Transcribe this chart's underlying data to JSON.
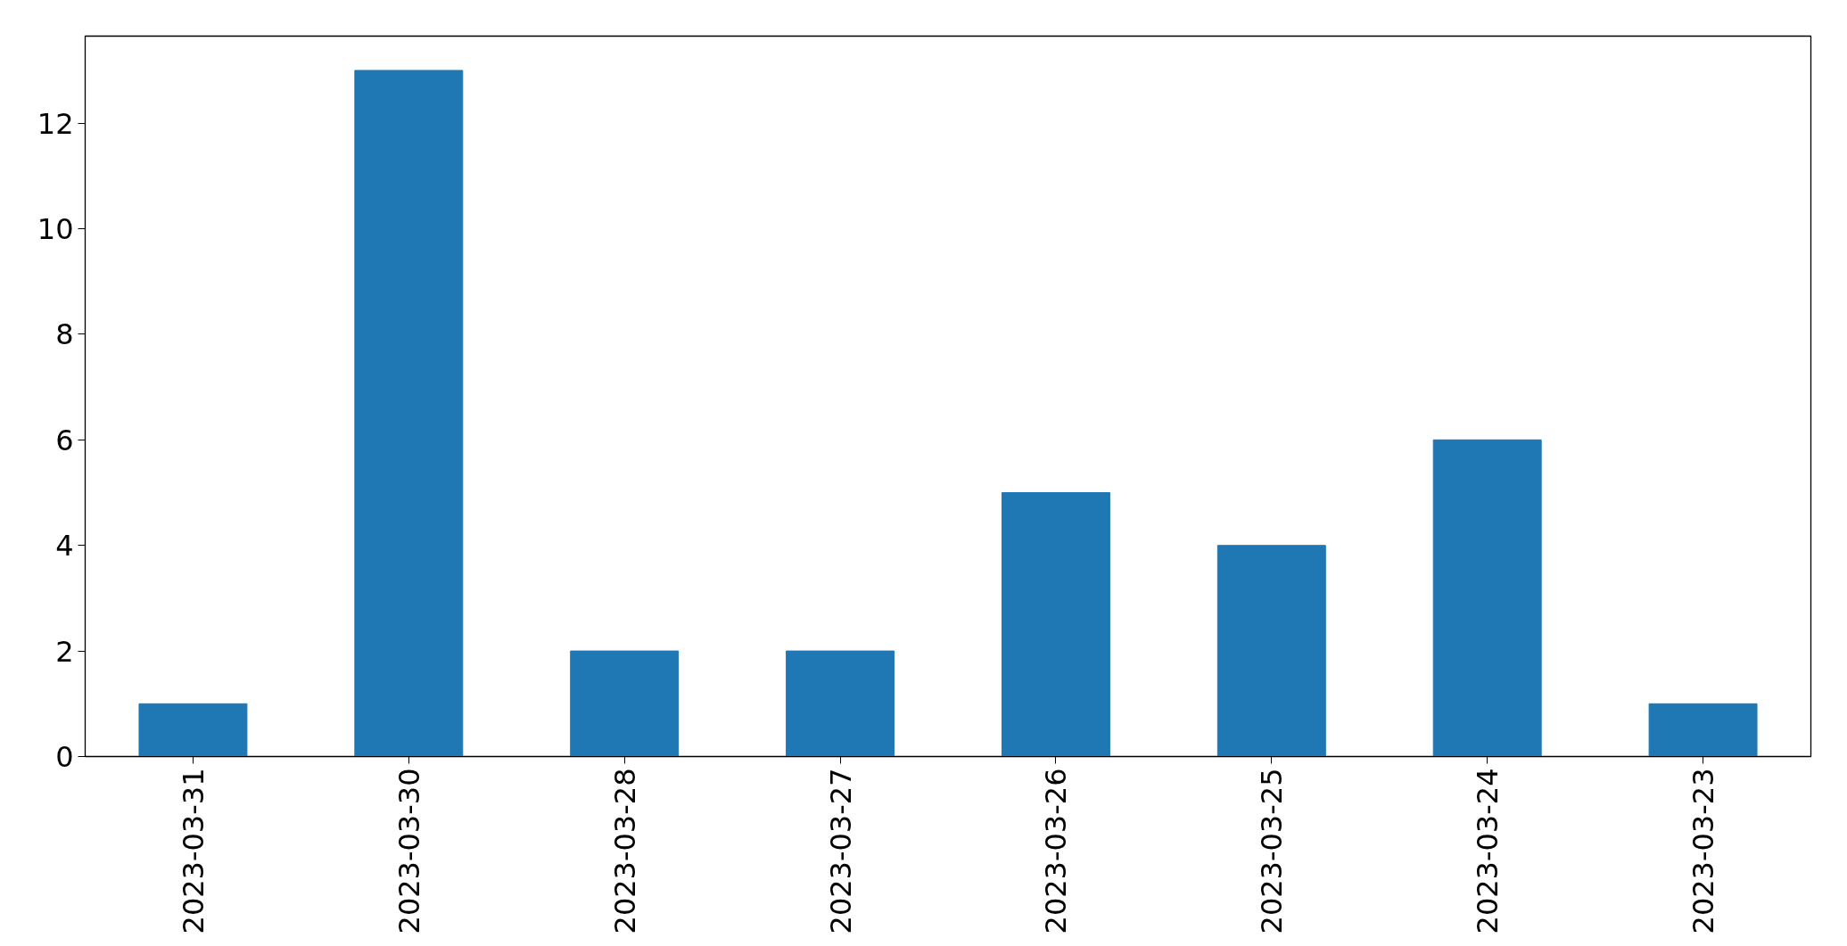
{
  "chart_data": {
    "type": "bar",
    "categories": [
      "2023-03-31",
      "2023-03-30",
      "2023-03-28",
      "2023-03-27",
      "2023-03-26",
      "2023-03-25",
      "2023-03-24",
      "2023-03-23"
    ],
    "values": [
      1,
      13,
      2,
      2,
      5,
      4,
      6,
      1
    ],
    "color": "#1f77b4",
    "ylim": [
      0,
      13.65
    ],
    "yticks": [
      0,
      2,
      4,
      6,
      8,
      10,
      12
    ],
    "grid": false
  }
}
